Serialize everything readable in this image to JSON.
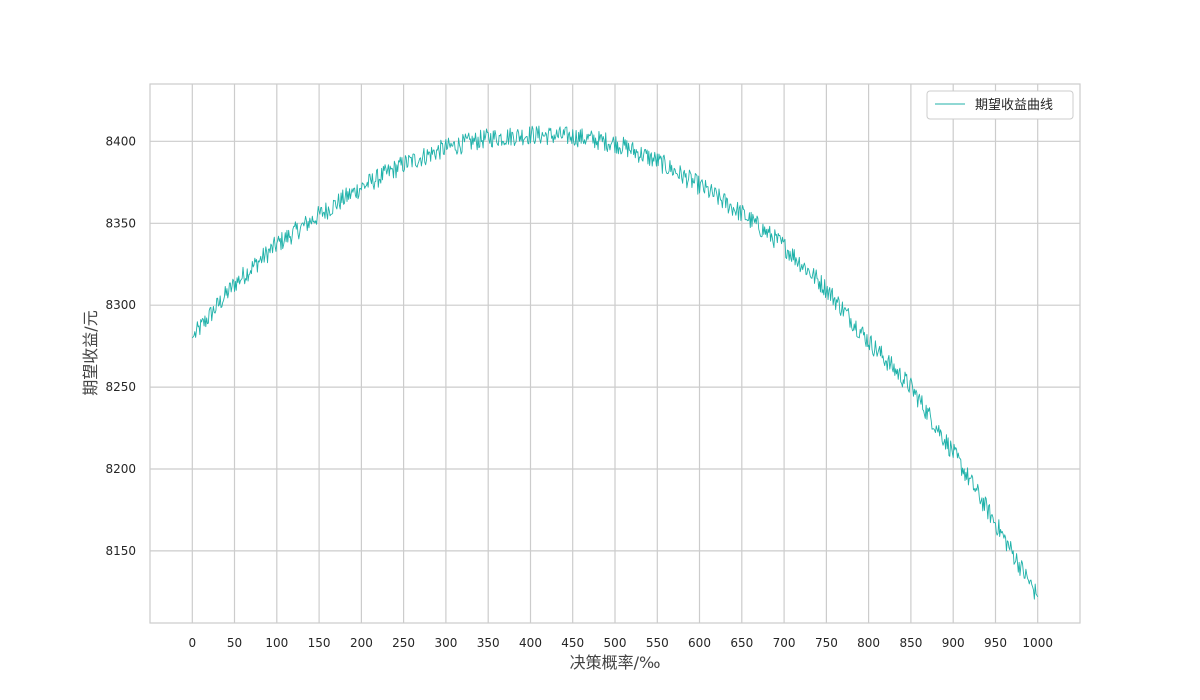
{
  "chart_data": {
    "type": "line",
    "xlabel": "决策概率/‰",
    "ylabel": "期望收益/元",
    "xlim": [
      -50,
      1050
    ],
    "ylim": [
      8106,
      8435
    ],
    "x_ticks": [
      0,
      50,
      100,
      150,
      200,
      250,
      300,
      350,
      400,
      450,
      500,
      550,
      600,
      650,
      700,
      750,
      800,
      850,
      900,
      950,
      1000
    ],
    "y_ticks": [
      8150,
      8200,
      8250,
      8300,
      8350,
      8400
    ],
    "grid": true,
    "legend_position": "top-right",
    "colors": {
      "line": "#20b2aa",
      "grid": "#cccccc",
      "frame": "#cccccc",
      "background": "#ffffff"
    },
    "series": [
      {
        "name": "期望收益曲线",
        "x": [
          0,
          50,
          100,
          150,
          200,
          250,
          300,
          350,
          400,
          450,
          500,
          550,
          600,
          650,
          700,
          750,
          800,
          850,
          900,
          950,
          1000
        ],
        "values": [
          8280,
          8313,
          8337,
          8355,
          8372,
          8386,
          8396,
          8402,
          8404,
          8403,
          8399,
          8388,
          8373,
          8356,
          8336,
          8310,
          8278,
          8250,
          8210,
          8167,
          8122
        ],
        "noise_amplitude": 6
      }
    ]
  }
}
